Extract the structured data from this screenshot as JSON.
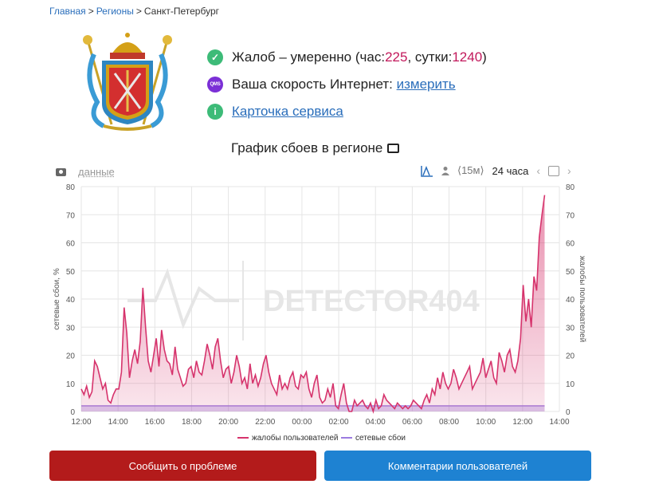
{
  "breadcrumb": {
    "home": "Главная",
    "regions": "Регионы",
    "current": "Санкт-Петербург",
    "sep": ">"
  },
  "status": {
    "complaints_prefix": "Жалоб – умеренно (час: ",
    "hour_value": "225",
    "day_label": ", сутки: ",
    "day_value": "1240",
    "close": ")",
    "speed_label": "Ваша скорость Интернет: ",
    "speed_link": "измерить",
    "qms_label": "QMS",
    "service_card": "Карточка сервиса"
  },
  "chart_title": "График сбоев в регионе",
  "toolbar": {
    "data_link": "данные",
    "interval_15m": "⟨15м⟩",
    "interval_24h": "24 часа"
  },
  "watermark": "DETECTOR404",
  "buttons": {
    "report": "Сообщить о проблеме",
    "comments": "Комментарии пользователей"
  },
  "colors": {
    "complaints": "#d6336c",
    "outages": "#9b7be0",
    "report_button": "#b31b1b",
    "comments_button": "#1e82d2"
  },
  "chart_data": {
    "type": "area",
    "x_labels": [
      "12:00",
      "14:00",
      "16:00",
      "18:00",
      "20:00",
      "22:00",
      "00:00",
      "02:00",
      "04:00",
      "06:00",
      "08:00",
      "10:00",
      "12:00",
      "14:00"
    ],
    "ylim": [
      0,
      80
    ],
    "y_ticks": [
      0,
      10,
      20,
      30,
      40,
      50,
      60,
      70,
      80
    ],
    "ylabel_left": "сетевые сбои, %",
    "ylabel_right": "жалобы пользователей",
    "grid": true,
    "legend_position": "bottom",
    "series": [
      {
        "name": "жалобы пользователей",
        "values": [
          8,
          6,
          9,
          5,
          7,
          18,
          16,
          12,
          8,
          10,
          4,
          3,
          6,
          8,
          8,
          14,
          37,
          28,
          12,
          18,
          22,
          17,
          25,
          44,
          30,
          18,
          14,
          20,
          26,
          16,
          29,
          22,
          18,
          17,
          13,
          23,
          15,
          12,
          9,
          10,
          15,
          16,
          12,
          18,
          14,
          13,
          18,
          24,
          20,
          15,
          23,
          26,
          18,
          12,
          15,
          16,
          10,
          14,
          20,
          16,
          10,
          12,
          8,
          17,
          10,
          13,
          9,
          12,
          17,
          20,
          14,
          10,
          8,
          6,
          13,
          8,
          10,
          8,
          12,
          14,
          9,
          8,
          13,
          12,
          14,
          8,
          5,
          10,
          13,
          5,
          3,
          4,
          8,
          5,
          10,
          2,
          1,
          6,
          10,
          3,
          0,
          0,
          4,
          2,
          3,
          4,
          2,
          1,
          3,
          0,
          4,
          1,
          2,
          6,
          4,
          3,
          2,
          1,
          3,
          2,
          1,
          2,
          1,
          2,
          4,
          3,
          2,
          1,
          4,
          6,
          3,
          8,
          6,
          12,
          8,
          14,
          10,
          8,
          10,
          15,
          12,
          8,
          10,
          12,
          14,
          16,
          8,
          10,
          12,
          14,
          19,
          12,
          15,
          18,
          12,
          10,
          21,
          18,
          14,
          20,
          22,
          16,
          14,
          18,
          26,
          45,
          32,
          40,
          30,
          48,
          43,
          62,
          70,
          77
        ]
      },
      {
        "name": "сетевые сбои",
        "values": [
          2,
          2,
          2,
          2,
          2,
          2,
          2,
          2,
          2,
          2,
          2,
          2,
          2,
          2,
          2,
          2,
          2,
          2,
          2,
          2,
          2,
          2,
          2,
          2,
          2,
          2,
          2,
          2,
          2,
          2,
          2,
          2,
          2,
          2,
          2,
          2,
          2,
          2,
          2,
          2,
          2,
          2,
          2,
          2,
          2,
          2,
          2,
          2,
          2,
          2,
          2,
          2,
          2,
          2,
          2,
          2,
          2,
          2,
          2,
          2,
          2,
          2,
          2,
          2,
          2,
          2,
          2,
          2,
          2,
          2,
          2,
          2,
          2,
          2,
          2,
          2,
          2,
          2,
          2,
          2,
          2,
          2,
          2,
          2,
          2,
          2,
          2,
          2,
          2,
          2,
          2,
          2,
          2,
          2,
          2,
          2,
          2,
          2,
          2,
          2,
          2,
          2,
          2,
          2,
          2,
          2,
          2,
          2,
          2,
          2,
          2,
          2,
          2,
          2,
          2,
          2,
          2,
          2,
          2,
          2,
          2,
          2,
          2,
          2,
          2,
          2,
          2,
          2,
          2,
          2,
          2,
          2,
          2,
          2,
          2,
          2,
          2,
          2,
          2,
          2,
          2,
          2,
          2,
          2,
          2,
          2,
          2,
          2,
          2,
          2,
          2,
          2,
          2,
          2,
          2,
          2,
          2,
          2,
          2,
          2,
          2,
          2,
          2,
          2,
          2,
          2,
          2,
          2,
          2,
          2,
          2,
          2,
          2,
          2
        ]
      }
    ]
  }
}
